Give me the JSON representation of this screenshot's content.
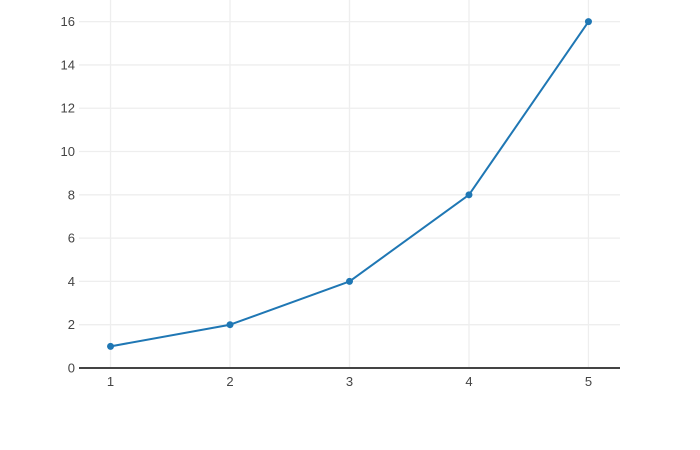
{
  "chart_data": {
    "type": "line",
    "x": [
      1,
      2,
      3,
      4,
      5
    ],
    "series": [
      {
        "values": [
          1,
          2,
          4,
          8,
          16
        ]
      }
    ],
    "x_tick_labels": [
      "1",
      "2",
      "3",
      "4",
      "5"
    ],
    "y_tick_labels": [
      "0",
      "2",
      "4",
      "6",
      "8",
      "10",
      "12",
      "14",
      "16"
    ],
    "xlim": [
      0.736,
      5.264
    ],
    "ylim": [
      0,
      17
    ],
    "grid": true,
    "legend": false,
    "marker": "circle",
    "colors": {
      "series": "#1f77b4",
      "grid": "#eeeeee",
      "axis_line": "#444444",
      "tick_label": "#444444",
      "background": "#ffffff"
    }
  }
}
